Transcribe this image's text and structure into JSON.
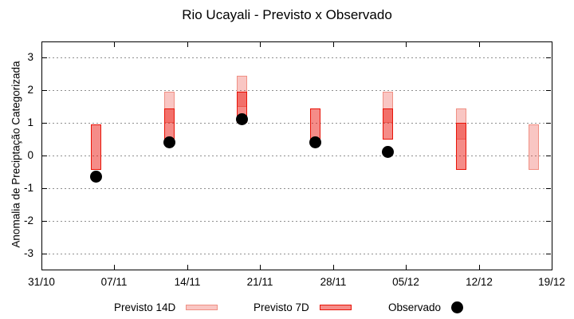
{
  "chart_data": {
    "type": "bar",
    "subtype": "floating-range-bars-with-scatter",
    "title": "Rio Ucayali - Previsto x Observado",
    "ylabel": "Anomalia de Preciptação Categorizada",
    "xlabel": "",
    "ylim": [
      -3.5,
      3.5
    ],
    "yticks": [
      3,
      2,
      1,
      0,
      -1,
      -2,
      -3
    ],
    "x_total_days": 49,
    "xticks": [
      {
        "label": "31/10",
        "day": 0
      },
      {
        "label": "07/11",
        "day": 7
      },
      {
        "label": "14/11",
        "day": 14
      },
      {
        "label": "21/11",
        "day": 21
      },
      {
        "label": "28/11",
        "day": 28
      },
      {
        "label": "05/12",
        "day": 35
      },
      {
        "label": "12/12",
        "day": 42
      },
      {
        "label": "19/12",
        "day": 49
      }
    ],
    "grid": true,
    "grid_color": "#8f8f8f",
    "axis_color": "#000000",
    "legend_position": "bottom-center",
    "series": [
      {
        "name": "Previsto 14D",
        "type": "range-bar",
        "fill": "rgba(235,65,55,0.3)",
        "border": "#f09084"
      },
      {
        "name": "Previsto 7D",
        "type": "range-bar",
        "fill": "rgba(235,25,18,0.5)",
        "border": "#e81408"
      },
      {
        "name": "Observado",
        "type": "scatter",
        "color": "#000000"
      }
    ],
    "groups": [
      {
        "date": "05/11",
        "day": 5,
        "previsto_14d": null,
        "previsto_7d": [
          -0.45,
          0.95
        ],
        "observado": -0.65
      },
      {
        "date": "12/11",
        "day": 12,
        "previsto_14d": [
          1.0,
          1.95
        ],
        "previsto_7d": [
          0.5,
          1.45
        ],
        "observado": 0.4
      },
      {
        "date": "19/11",
        "day": 19,
        "previsto_14d": [
          1.5,
          2.45
        ],
        "previsto_7d": [
          1.0,
          1.95
        ],
        "observado": 1.1
      },
      {
        "date": "26/11",
        "day": 26,
        "previsto_14d": null,
        "previsto_7d": [
          0.5,
          1.45
        ],
        "observado": 0.4
      },
      {
        "date": "03/12",
        "day": 33,
        "previsto_14d": [
          1.0,
          1.95
        ],
        "previsto_7d": [
          0.5,
          1.45
        ],
        "observado": 0.1
      },
      {
        "date": "10/12",
        "day": 40,
        "previsto_14d": [
          0.5,
          1.45
        ],
        "previsto_7d": [
          -0.45,
          1.0
        ],
        "observado": null
      },
      {
        "date": "17/12",
        "day": 47,
        "previsto_14d": [
          -0.45,
          0.95
        ],
        "previsto_7d": null,
        "observado": null
      }
    ]
  }
}
